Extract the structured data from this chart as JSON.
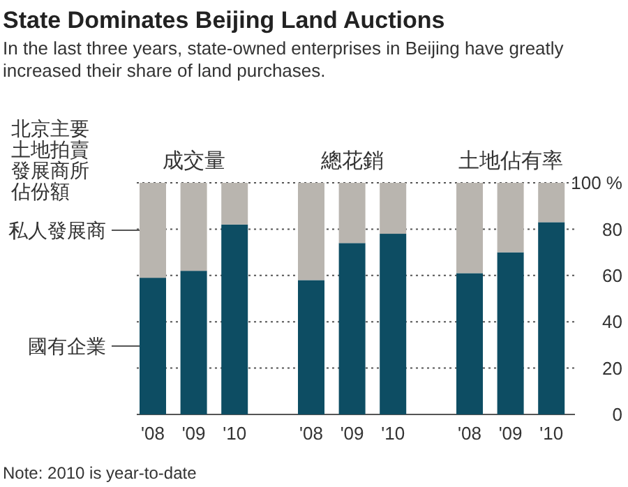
{
  "chart_data": {
    "type": "bar",
    "stacked": true,
    "title": "State Dominates Beijing Land Auctions",
    "subtitle": "In the last three years, state-owned enterprises in Beijing have greatly increased their share of land purchases.",
    "ylabel": "北京主要土地拍賣發展商所佔份額",
    "categories": [
      "'08",
      "'09",
      "'10",
      "'08",
      "'09",
      "'10",
      "'08",
      "'09",
      "'10"
    ],
    "series": [
      {
        "name": "國有企業",
        "color": "#0d4d63",
        "values": [
          59,
          62,
          82,
          58,
          74,
          78,
          61,
          70,
          83
        ]
      },
      {
        "name": "私人發展商",
        "color": "#b9b5af",
        "values": [
          41,
          38,
          18,
          42,
          26,
          22,
          39,
          30,
          17
        ]
      }
    ],
    "ylim": [
      0,
      100
    ],
    "yticks": [
      0,
      20,
      40,
      60,
      80,
      {
        "value": 100,
        "label": "100 %"
      }
    ],
    "grid": "y",
    "annotations": [
      "成交量",
      "總花銷",
      "土地佔有率",
      "Note: 2010 is year-to-date"
    ]
  }
}
